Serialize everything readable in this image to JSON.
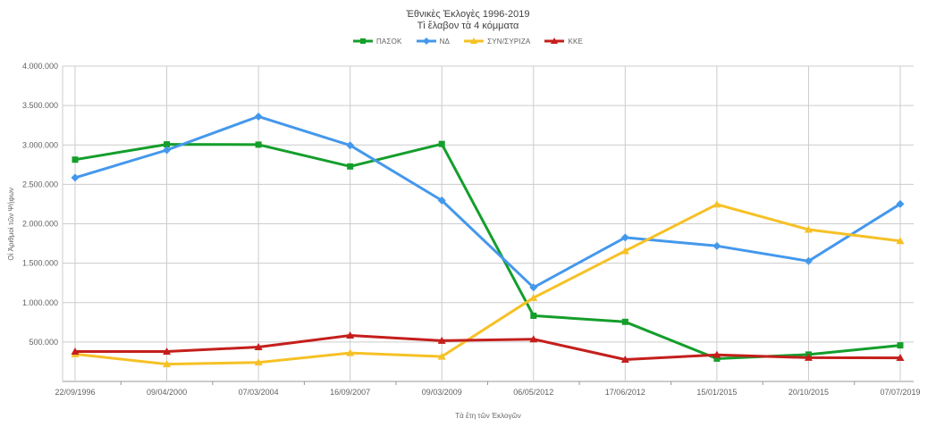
{
  "chart_data": {
    "type": "line",
    "title": "Ἐθνικὲς Ἐκλογὲς 1996-2019",
    "subtitle": "Τὶ ἔλαβον τὰ 4 κόμματα",
    "xlabel": "Τὰ ἔτη τῶν Ἐκλογῶν",
    "ylabel": "Οἱ Ἀριθμοὶ τῶν Ψήφων",
    "categories": [
      "22/09/1996",
      "09/04/2000",
      "07/03/2004",
      "16/09/2007",
      "09/03/2009",
      "06/05/2012",
      "17/06/2012",
      "15/01/2015",
      "20/10/2015",
      "07/07/2019"
    ],
    "series": [
      {
        "id": "pasok",
        "name": "ΠΑΣΟΚ",
        "color": "#149e2b",
        "marker": "square",
        "values": [
          2813245,
          3007596,
          3003988,
          2727279,
          3012373,
          833452,
          756024,
          289469,
          341390,
          457623
        ]
      },
      {
        "id": "nd",
        "name": "ΝΔ",
        "color": "#4498ec",
        "marker": "diamond",
        "values": [
          2584765,
          2935196,
          3360424,
          2994979,
          2295719,
          1192103,
          1825497,
          1718815,
          1526205,
          2251411
        ]
      },
      {
        "id": "syn-syriza",
        "name": "ΣΥΝ/ΣΥΡΙΖΑ",
        "color": "#f6c126",
        "marker": "triangle",
        "values": [
          347051,
          219880,
          241539,
          361101,
          315627,
          1061265,
          1655022,
          2246064,
          1925904,
          1781174
        ]
      },
      {
        "id": "kke",
        "name": "ΚΚΕ",
        "color": "#c41f1c",
        "marker": "triangle",
        "values": [
          380167,
          379454,
          436573,
          583768,
          517154,
          536105,
          277227,
          338188,
          301632,
          299595
        ]
      }
    ],
    "ylim": [
      0,
      4000000
    ],
    "ytick_step": 500000,
    "ytick_labels": [
      "500.000",
      "1.000.000",
      "1.500.000",
      "2.000.000",
      "2.500.000",
      "3.000.000",
      "3.500.000",
      "4.000.000"
    ],
    "grid": true,
    "legend_position": "top",
    "grid_color": "#cccccc",
    "axis_color": "#999999",
    "label_color": "#616161"
  }
}
